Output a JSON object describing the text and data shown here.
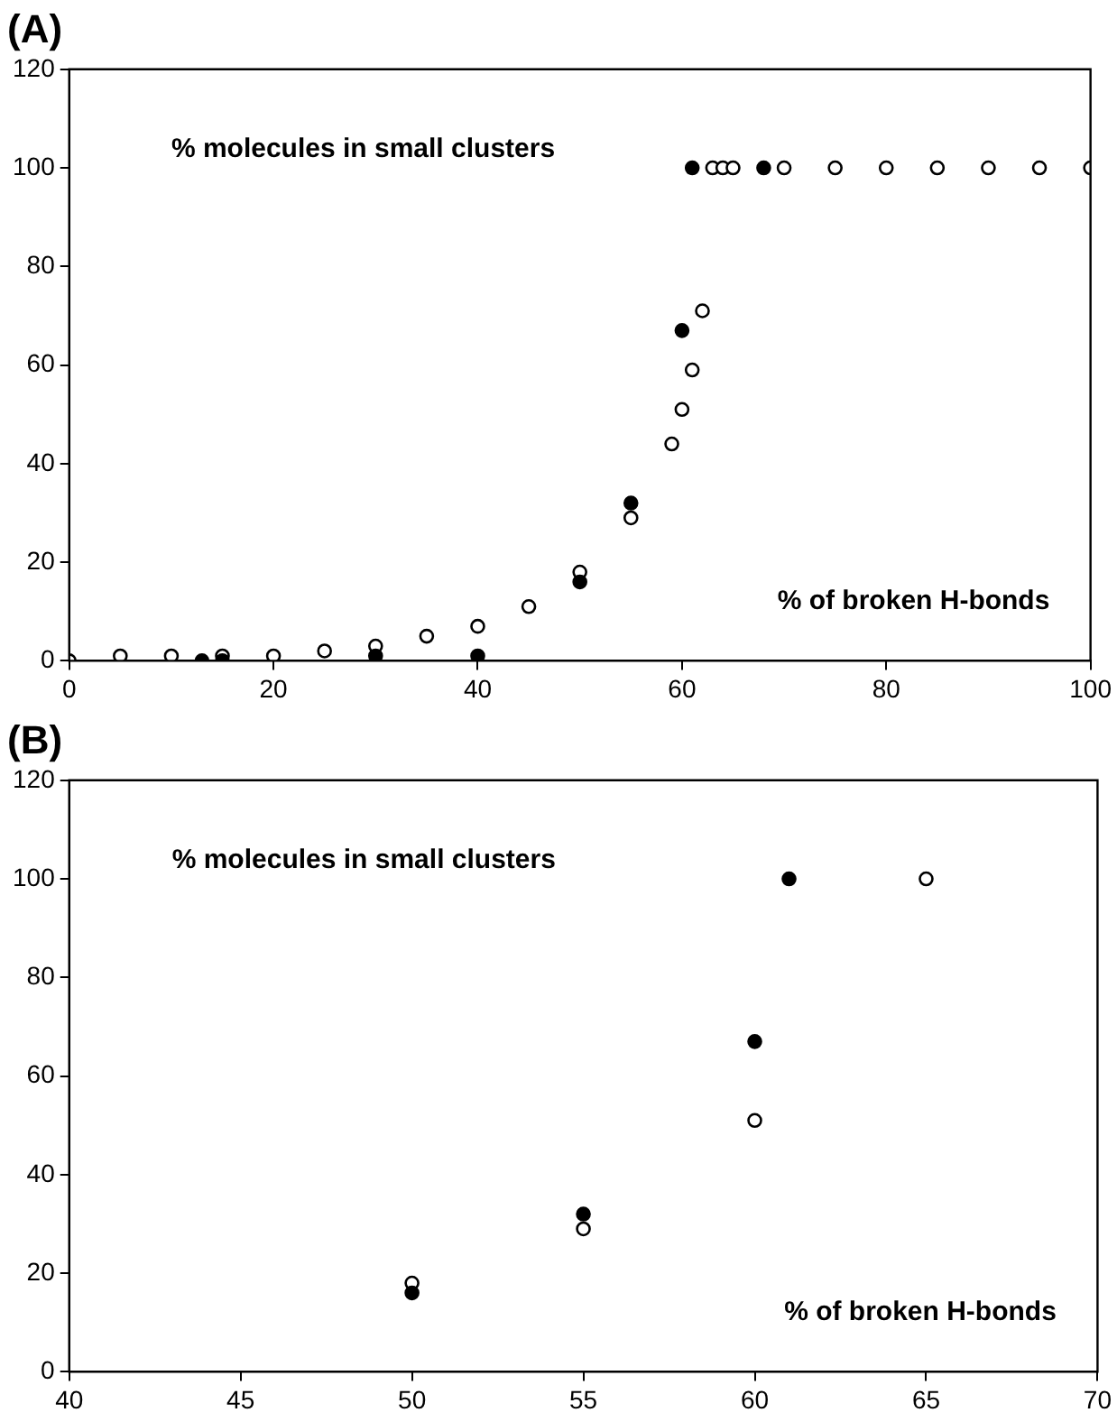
{
  "chart_data": [
    {
      "type": "scatter",
      "title": "(A)",
      "xlabel": "% of broken H-bonds",
      "ylabel": "% molecules in small clusters",
      "xlim": [
        0,
        100
      ],
      "xticks": [
        0,
        20,
        40,
        60,
        80,
        100
      ],
      "ylim": [
        0,
        120
      ],
      "yticks": [
        0,
        20,
        40,
        60,
        80,
        100,
        120
      ],
      "grid": false,
      "legend": false,
      "marker": "circle",
      "series": [
        {
          "color": "#ffffff",
          "x": [
            0,
            5,
            10,
            15,
            20,
            25,
            30,
            35,
            40,
            45,
            50,
            55,
            59,
            60,
            61,
            62,
            63,
            64,
            65,
            70,
            75,
            80,
            85,
            90,
            95,
            100
          ],
          "values": [
            0,
            1,
            1,
            1,
            1,
            2,
            3,
            5,
            7,
            11,
            18,
            29,
            44,
            51,
            59,
            71,
            100,
            100,
            100,
            100,
            100,
            100,
            100,
            100,
            100,
            100
          ]
        },
        {
          "color": "#000000",
          "x": [
            13,
            15,
            30,
            40,
            50,
            55,
            60,
            61,
            68
          ],
          "values": [
            0,
            0,
            1,
            1,
            16,
            32,
            67,
            100,
            100
          ]
        }
      ]
    },
    {
      "type": "scatter",
      "title": "(B)",
      "xlabel": "% of broken H-bonds",
      "ylabel": "% molecules in small clusters",
      "xlim": [
        40,
        70
      ],
      "xticks": [
        40,
        45,
        50,
        55,
        60,
        65,
        70
      ],
      "ylim": [
        0,
        120
      ],
      "yticks": [
        0,
        20,
        40,
        60,
        80,
        100,
        120
      ],
      "grid": false,
      "legend": false,
      "marker": "circle",
      "series": [
        {
          "color": "#ffffff",
          "x": [
            50,
            55,
            60,
            65
          ],
          "values": [
            18,
            29,
            51,
            100
          ]
        },
        {
          "color": "#000000",
          "x": [
            50,
            55,
            60,
            61
          ],
          "values": [
            16,
            32,
            67,
            100
          ]
        }
      ]
    }
  ]
}
